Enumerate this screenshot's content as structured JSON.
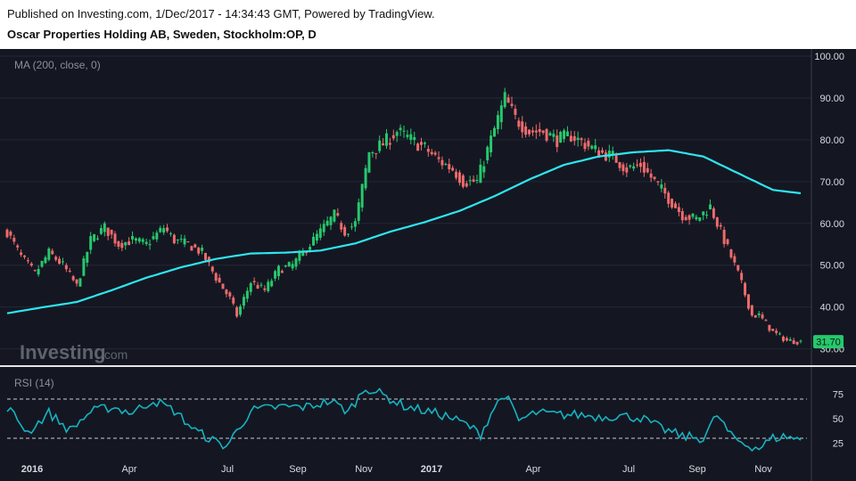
{
  "header": {
    "published": "Published on Investing.com, 1/Dec/2017 - 14:34:43 GMT, Powered by TradingView.",
    "title": "Oscar Properties Holding AB, Sweden, Stockholm:OP, D"
  },
  "colors": {
    "background": "#141722",
    "up": "#26c96c",
    "down": "#ef6b6b",
    "ma": "#2ee6f0",
    "rsi": "#16b3c0",
    "price_tag": "#26c96c"
  },
  "watermark": {
    "brand": "Investing",
    "suffix": ".com"
  },
  "chart_data": [
    {
      "type": "candlestick",
      "indicator_label": "MA (200, close, 0)",
      "ylim": [
        28,
        100
      ],
      "yticks": [
        "100.00",
        "90.00",
        "80.00",
        "70.00",
        "60.00",
        "50.00",
        "40.00",
        "30.00"
      ],
      "last_price": "31.70",
      "x_labels": [
        "2016",
        "Apr",
        "Jul",
        "Sep",
        "Nov",
        "2017",
        "Apr",
        "Jul",
        "Sep",
        "Nov"
      ],
      "price_path": [
        [
          0,
          58
        ],
        [
          4,
          52
        ],
        [
          8,
          48
        ],
        [
          12,
          53
        ],
        [
          16,
          50
        ],
        [
          20,
          45
        ],
        [
          24,
          56
        ],
        [
          28,
          59
        ],
        [
          32,
          55
        ],
        [
          36,
          56
        ],
        [
          40,
          55
        ],
        [
          45,
          59
        ],
        [
          48,
          56
        ],
        [
          52,
          55
        ],
        [
          56,
          53
        ],
        [
          60,
          47
        ],
        [
          64,
          42
        ],
        [
          66,
          38
        ],
        [
          70,
          46
        ],
        [
          74,
          44
        ],
        [
          78,
          49
        ],
        [
          82,
          50
        ],
        [
          86,
          54
        ],
        [
          90,
          58
        ],
        [
          94,
          62
        ],
        [
          97,
          58
        ],
        [
          100,
          60
        ],
        [
          104,
          77
        ],
        [
          108,
          79
        ],
        [
          112,
          82
        ],
        [
          116,
          80
        ],
        [
          120,
          78
        ],
        [
          124,
          75
        ],
        [
          128,
          73
        ],
        [
          131,
          70
        ],
        [
          135,
          70
        ],
        [
          139,
          80
        ],
        [
          143,
          90
        ],
        [
          146,
          85
        ],
        [
          150,
          82
        ],
        [
          154,
          82
        ],
        [
          158,
          80
        ],
        [
          162,
          81
        ],
        [
          166,
          79
        ],
        [
          170,
          77
        ],
        [
          174,
          76
        ],
        [
          178,
          73
        ],
        [
          182,
          74
        ],
        [
          186,
          70
        ],
        [
          190,
          66
        ],
        [
          194,
          62
        ],
        [
          198,
          61
        ],
        [
          202,
          64
        ],
        [
          206,
          56
        ],
        [
          210,
          48
        ],
        [
          214,
          38
        ],
        [
          216,
          38
        ],
        [
          220,
          34
        ],
        [
          224,
          32
        ],
        [
          228,
          31.7
        ]
      ],
      "ma_path": [
        [
          0,
          38.5
        ],
        [
          10,
          39.9
        ],
        [
          20,
          41.2
        ],
        [
          30,
          44
        ],
        [
          40,
          47
        ],
        [
          50,
          49.5
        ],
        [
          60,
          51.5
        ],
        [
          70,
          52.8
        ],
        [
          80,
          53
        ],
        [
          90,
          53.5
        ],
        [
          100,
          55.2
        ],
        [
          110,
          58
        ],
        [
          120,
          60.3
        ],
        [
          130,
          63
        ],
        [
          140,
          66.5
        ],
        [
          150,
          70.5
        ],
        [
          160,
          74
        ],
        [
          170,
          76
        ],
        [
          180,
          77
        ],
        [
          190,
          77.5
        ],
        [
          200,
          76
        ],
        [
          210,
          72
        ],
        [
          220,
          68
        ],
        [
          228,
          67.2
        ]
      ]
    },
    {
      "type": "line",
      "indicator_label": "RSI (14)",
      "ylim": [
        0,
        100
      ],
      "yticks": [
        "75",
        "50",
        "25"
      ],
      "reference_lines": [
        70,
        30
      ],
      "rsi_path": [
        [
          0,
          62
        ],
        [
          6,
          36
        ],
        [
          12,
          56
        ],
        [
          18,
          38
        ],
        [
          24,
          57
        ],
        [
          30,
          62
        ],
        [
          36,
          56
        ],
        [
          42,
          69
        ],
        [
          48,
          58
        ],
        [
          54,
          38
        ],
        [
          60,
          26
        ],
        [
          63,
          22
        ],
        [
          70,
          58
        ],
        [
          78,
          62
        ],
        [
          86,
          62
        ],
        [
          93,
          68
        ],
        [
          98,
          57
        ],
        [
          103,
          82
        ],
        [
          108,
          74
        ],
        [
          114,
          63
        ],
        [
          120,
          58
        ],
        [
          126,
          53
        ],
        [
          132,
          44
        ],
        [
          136,
          34
        ],
        [
          140,
          62
        ],
        [
          143,
          75
        ],
        [
          147,
          48
        ],
        [
          152,
          56
        ],
        [
          158,
          54
        ],
        [
          164,
          54
        ],
        [
          170,
          52
        ],
        [
          176,
          53
        ],
        [
          182,
          51
        ],
        [
          188,
          40
        ],
        [
          194,
          32
        ],
        [
          200,
          30
        ],
        [
          204,
          54
        ],
        [
          208,
          32
        ],
        [
          212,
          24
        ],
        [
          216,
          20
        ],
        [
          220,
          30
        ],
        [
          224,
          32
        ],
        [
          228,
          28
        ]
      ]
    }
  ]
}
